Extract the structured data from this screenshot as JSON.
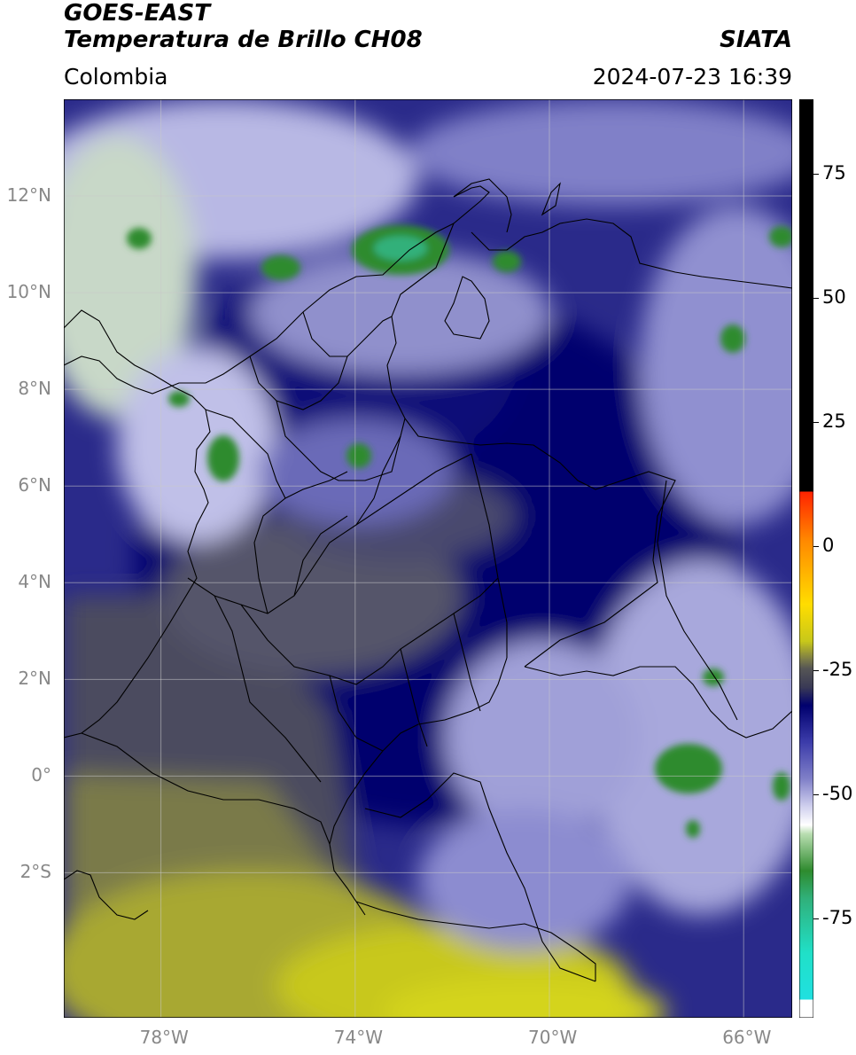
{
  "header": {
    "title_line1": "GOES-EAST",
    "title_line2": "Temperatura de Brillo CH08",
    "brand": "SIATA",
    "region": "Colombia",
    "datetime": "2024-07-23 16:39"
  },
  "map": {
    "lat_labels": [
      "12°N",
      "10°N",
      "8°N",
      "6°N",
      "4°N",
      "2°N",
      "0°",
      "2°S"
    ],
    "lon_labels": [
      "78°W",
      "74°W",
      "70°W",
      "66°W"
    ],
    "lat_values": [
      12,
      10,
      8,
      6,
      4,
      2,
      0,
      -2
    ],
    "lon_values": [
      -78,
      -74,
      -70,
      -66
    ],
    "extent": {
      "lon_min": -80,
      "lon_max": -65,
      "lat_min": -5,
      "lat_max": 14
    },
    "grid": true
  },
  "colorbar": {
    "range": [
      -95,
      90
    ],
    "tick_labels": [
      "75",
      "50",
      "25",
      "0",
      "-25",
      "-50",
      "-75"
    ],
    "tick_values": [
      75,
      50,
      25,
      0,
      -25,
      -50,
      -75
    ],
    "colors": {
      "above_10": "#000000",
      "warm": [
        "#ff2200",
        "#ff8800",
        "#ffdd00",
        "#c8c81a"
      ],
      "dark": [
        "#555555",
        "#3a3a55",
        "#00006e"
      ],
      "blue": [
        "#3c3caa",
        "#8080c8",
        "#d0d0ee"
      ],
      "green": [
        "#b8ddb0",
        "#2e8b2e",
        "#30b07a",
        "#20e0c8",
        "#20e0e0"
      ]
    }
  }
}
